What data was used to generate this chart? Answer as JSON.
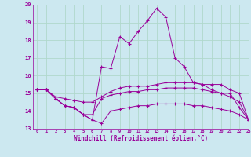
{
  "xlabel": "Windchill (Refroidissement éolien,°C)",
  "x": [
    0,
    1,
    2,
    3,
    4,
    5,
    6,
    7,
    8,
    9,
    10,
    11,
    12,
    13,
    14,
    15,
    16,
    17,
    18,
    19,
    20,
    21,
    22,
    23
  ],
  "line1": [
    15.2,
    15.2,
    14.7,
    14.3,
    14.2,
    13.8,
    13.5,
    16.5,
    16.4,
    18.2,
    17.8,
    18.5,
    19.1,
    19.8,
    19.3,
    17.0,
    16.5,
    15.6,
    15.5,
    15.2,
    15.0,
    15.0,
    14.2,
    13.5
  ],
  "line2": [
    15.2,
    15.2,
    14.8,
    14.7,
    14.6,
    14.5,
    14.5,
    14.8,
    15.1,
    15.3,
    15.4,
    15.4,
    15.4,
    15.5,
    15.6,
    15.6,
    15.6,
    15.6,
    15.5,
    15.5,
    15.5,
    15.2,
    15.0,
    13.5
  ],
  "line3": [
    15.2,
    15.2,
    14.7,
    14.3,
    14.2,
    13.8,
    13.8,
    14.7,
    14.9,
    15.0,
    15.1,
    15.1,
    15.2,
    15.2,
    15.3,
    15.3,
    15.3,
    15.3,
    15.2,
    15.1,
    15.0,
    14.8,
    14.5,
    13.5
  ],
  "line4": [
    15.2,
    15.2,
    14.7,
    14.3,
    14.2,
    13.8,
    13.5,
    13.3,
    14.0,
    14.1,
    14.2,
    14.3,
    14.3,
    14.4,
    14.4,
    14.4,
    14.4,
    14.3,
    14.3,
    14.2,
    14.1,
    14.0,
    13.8,
    13.5
  ],
  "line_color": "#990099",
  "bg_color": "#cce8f0",
  "grid_color": "#b0d8cc",
  "ylim": [
    13,
    20
  ],
  "xlim": [
    -0.5,
    23
  ],
  "yticks": [
    13,
    14,
    15,
    16,
    17,
    18,
    19,
    20
  ],
  "xticks": [
    0,
    1,
    2,
    3,
    4,
    5,
    6,
    7,
    8,
    9,
    10,
    11,
    12,
    13,
    14,
    15,
    16,
    17,
    18,
    19,
    20,
    21,
    22,
    23
  ]
}
